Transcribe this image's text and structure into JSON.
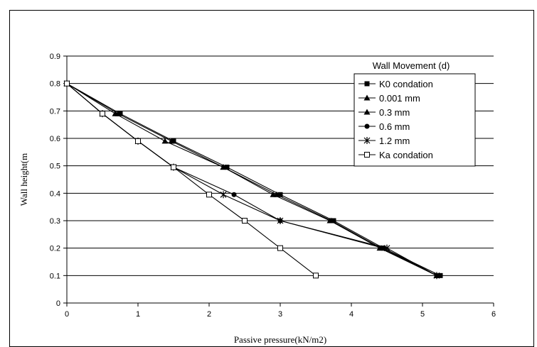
{
  "chart_data": {
    "type": "line",
    "xlabel": "Passive pressure(kN/m2)",
    "ylabel": "Wall height(m",
    "xlim": [
      0,
      6
    ],
    "ylim": [
      0,
      0.9
    ],
    "xticks": [
      "0",
      "1",
      "2",
      "3",
      "4",
      "5",
      "6"
    ],
    "yticks": [
      "0",
      "0.1",
      "0.2",
      "0.3",
      "0.4",
      "0.5",
      "0.6",
      "0.7",
      "0.8",
      "0.9"
    ],
    "grid": "horizontal",
    "legend": {
      "title": "Wall Movement (d)",
      "placement": "top-right"
    },
    "series": [
      {
        "name": "K0 condation",
        "marker": "square-filled",
        "x": [
          0,
          0.75,
          1.5,
          2.25,
          3.0,
          3.75,
          4.45,
          5.25
        ],
        "y": [
          0.8,
          0.69,
          0.59,
          0.495,
          0.395,
          0.3,
          0.2,
          0.1
        ]
      },
      {
        "name": "0.001 mm",
        "marker": "triangle-filled",
        "x": [
          0,
          0.72,
          1.47,
          2.2,
          2.95,
          3.72,
          4.42,
          5.2
        ],
        "y": [
          0.8,
          0.69,
          0.59,
          0.495,
          0.395,
          0.3,
          0.2,
          0.1
        ]
      },
      {
        "name": "0.3 mm",
        "marker": "triangle-filled",
        "x": [
          0,
          0.68,
          1.38,
          2.2,
          2.9,
          3.7,
          4.4,
          5.2
        ],
        "y": [
          0.8,
          0.69,
          0.59,
          0.495,
          0.395,
          0.3,
          0.2,
          0.1
        ]
      },
      {
        "name": "0.6 mm",
        "marker": "circle-filled",
        "x": [
          0,
          0.5,
          1.0,
          1.5,
          2.35,
          3.0,
          4.45,
          5.2
        ],
        "y": [
          0.8,
          0.69,
          0.59,
          0.495,
          0.395,
          0.3,
          0.2,
          0.1
        ]
      },
      {
        "name": "1.2 mm",
        "marker": "star",
        "x": [
          0,
          0.5,
          1.0,
          1.5,
          2.2,
          3.0,
          4.5,
          5.2
        ],
        "y": [
          0.8,
          0.69,
          0.59,
          0.495,
          0.395,
          0.3,
          0.2,
          0.1
        ]
      },
      {
        "name": "Ka condation",
        "marker": "square-open",
        "x": [
          0,
          0.5,
          1.0,
          1.5,
          2.0,
          2.5,
          3.0,
          3.5
        ],
        "y": [
          0.8,
          0.69,
          0.59,
          0.495,
          0.395,
          0.3,
          0.2,
          0.1
        ]
      }
    ]
  }
}
